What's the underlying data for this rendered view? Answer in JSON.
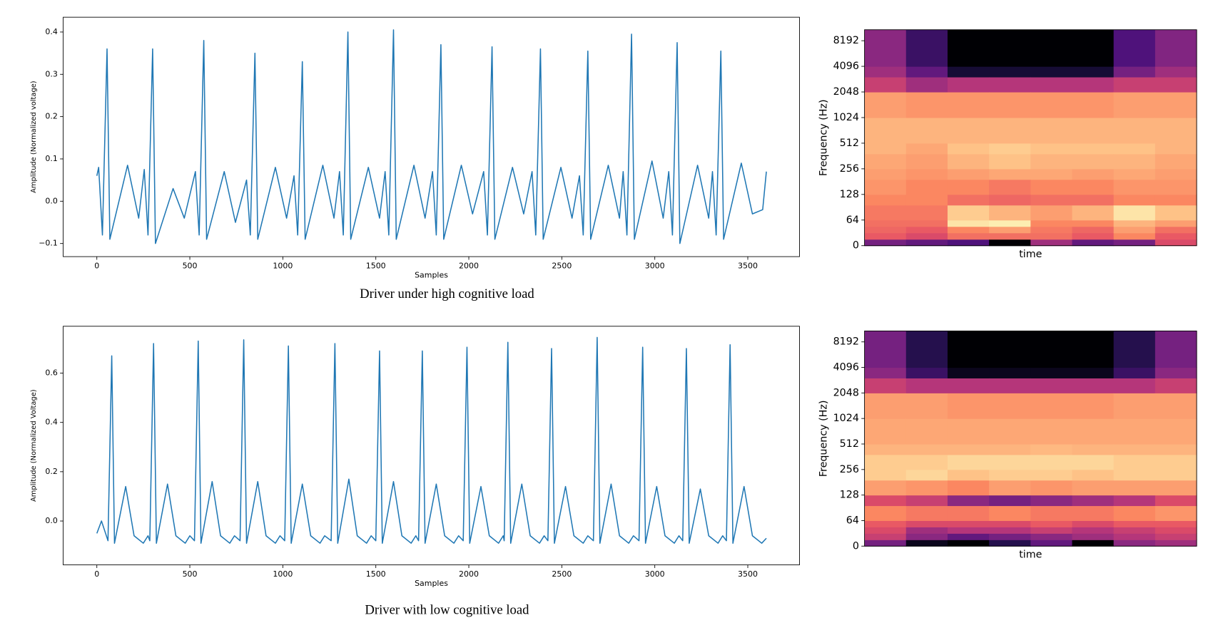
{
  "chart_data": [
    {
      "type": "line",
      "caption": "Driver under high cognitive load",
      "xlabel": "Samples",
      "ylabel": "Amplitude (Normalized voltage)",
      "color": "#1f77b4",
      "xlim": [
        -181,
        3778
      ],
      "ylim": [
        -0.131,
        0.435
      ],
      "xticks": [
        0,
        500,
        1000,
        1500,
        2000,
        2500,
        3000,
        3500
      ],
      "yticks": [
        {
          "value": -0.1,
          "label": "−0.1"
        },
        {
          "value": 0,
          "label": "0.0"
        },
        0.1,
        0.2,
        0.3,
        0.4
      ],
      "x": [
        0,
        10,
        30,
        55,
        70,
        165,
        225,
        255,
        275,
        300,
        315,
        410,
        470,
        530,
        550,
        575,
        590,
        685,
        745,
        805,
        825,
        850,
        865,
        960,
        1020,
        1060,
        1080,
        1105,
        1120,
        1215,
        1275,
        1305,
        1325,
        1350,
        1365,
        1460,
        1520,
        1550,
        1570,
        1595,
        1610,
        1705,
        1765,
        1805,
        1825,
        1850,
        1865,
        1960,
        2020,
        2080,
        2100,
        2125,
        2140,
        2235,
        2295,
        2340,
        2360,
        2385,
        2400,
        2495,
        2555,
        2595,
        2615,
        2640,
        2655,
        2750,
        2810,
        2830,
        2850,
        2875,
        2890,
        2985,
        3045,
        3075,
        3095,
        3120,
        3135,
        3230,
        3290,
        3310,
        3330,
        3355,
        3370,
        3465,
        3525,
        3580,
        3600
      ],
      "values": [
        0.06,
        0.08,
        -0.08,
        0.36,
        -0.09,
        0.085,
        -0.04,
        0.075,
        -0.08,
        0.36,
        -0.1,
        0.03,
        -0.04,
        0.07,
        -0.08,
        0.38,
        -0.09,
        0.07,
        -0.05,
        0.05,
        -0.08,
        0.35,
        -0.09,
        0.08,
        -0.04,
        0.06,
        -0.08,
        0.33,
        -0.09,
        0.085,
        -0.04,
        0.07,
        -0.08,
        0.4,
        -0.09,
        0.08,
        -0.04,
        0.07,
        -0.08,
        0.405,
        -0.09,
        0.085,
        -0.04,
        0.07,
        -0.08,
        0.37,
        -0.09,
        0.085,
        -0.03,
        0.07,
        -0.08,
        0.365,
        -0.09,
        0.08,
        -0.03,
        0.07,
        -0.08,
        0.36,
        -0.09,
        0.08,
        -0.04,
        0.06,
        -0.08,
        0.355,
        -0.09,
        0.085,
        -0.04,
        0.07,
        -0.08,
        0.395,
        -0.09,
        0.095,
        -0.04,
        0.07,
        -0.08,
        0.375,
        -0.1,
        0.085,
        -0.04,
        0.07,
        -0.08,
        0.355,
        -0.09,
        0.09,
        -0.03,
        -0.02,
        0.07
      ]
    },
    {
      "type": "spectrogram",
      "xlabel": "time",
      "ylabel": "Frequency (Hz)",
      "colormap": "magma",
      "yscale": "symlog",
      "linthresh": 64,
      "ylim": [
        0,
        11025
      ],
      "yticks": [
        0,
        64,
        128,
        256,
        512,
        1024,
        2048,
        4096,
        8192
      ],
      "bins": [
        0,
        16,
        32,
        48,
        64,
        96,
        128,
        192,
        256,
        384,
        512,
        1024,
        2048,
        3072,
        4096,
        11025
      ],
      "values": [
        [
          0.35,
          0.65,
          0.68,
          0.7,
          0.72,
          0.75,
          0.78,
          0.8,
          0.82,
          0.85,
          0.85,
          0.8,
          0.55,
          0.45,
          0.4
        ],
        [
          0.3,
          0.6,
          0.65,
          0.7,
          0.72,
          0.75,
          0.75,
          0.78,
          0.8,
          0.82,
          0.85,
          0.78,
          0.45,
          0.3,
          0.2
        ],
        [
          0.25,
          0.7,
          0.75,
          0.95,
          0.9,
          0.7,
          0.75,
          0.8,
          0.85,
          0.88,
          0.85,
          0.78,
          0.5,
          0.1,
          0.0
        ],
        [
          0.0,
          0.7,
          0.8,
          0.97,
          0.85,
          0.68,
          0.72,
          0.82,
          0.88,
          0.9,
          0.85,
          0.78,
          0.5,
          0.1,
          0.0
        ],
        [
          0.45,
          0.7,
          0.72,
          0.75,
          0.8,
          0.7,
          0.75,
          0.82,
          0.85,
          0.88,
          0.85,
          0.78,
          0.5,
          0.1,
          0.0
        ],
        [
          0.3,
          0.65,
          0.68,
          0.75,
          0.85,
          0.7,
          0.75,
          0.8,
          0.85,
          0.88,
          0.85,
          0.78,
          0.5,
          0.1,
          0.0
        ],
        [
          0.35,
          0.75,
          0.8,
          0.85,
          0.95,
          0.75,
          0.78,
          0.82,
          0.85,
          0.88,
          0.85,
          0.8,
          0.55,
          0.35,
          0.25
        ],
        [
          0.6,
          0.65,
          0.7,
          0.8,
          0.88,
          0.75,
          0.78,
          0.8,
          0.82,
          0.85,
          0.85,
          0.8,
          0.55,
          0.45,
          0.38
        ]
      ]
    },
    {
      "type": "line",
      "caption": "Driver with low cognitive load",
      "xlabel": "Samples",
      "ylabel": "Amplitude (Normalized Voltage)",
      "color": "#1f77b4",
      "xlim": [
        -181,
        3778
      ],
      "ylim": [
        -0.178,
        0.79
      ],
      "xticks": [
        0,
        500,
        1000,
        1500,
        2000,
        2500,
        3000,
        3500
      ],
      "yticks": [
        {
          "value": 0,
          "label": "0.0"
        },
        0.2,
        0.4,
        0.6
      ],
      "x": [
        0,
        25,
        60,
        80,
        95,
        155,
        200,
        250,
        275,
        285,
        305,
        320,
        380,
        425,
        475,
        500,
        525,
        545,
        560,
        620,
        665,
        715,
        740,
        770,
        790,
        805,
        865,
        910,
        960,
        985,
        1010,
        1030,
        1045,
        1105,
        1150,
        1200,
        1225,
        1260,
        1280,
        1295,
        1355,
        1400,
        1450,
        1475,
        1500,
        1520,
        1535,
        1595,
        1640,
        1690,
        1715,
        1730,
        1750,
        1765,
        1825,
        1870,
        1920,
        1945,
        1970,
        1990,
        2005,
        2065,
        2110,
        2160,
        2185,
        2190,
        2210,
        2225,
        2285,
        2330,
        2380,
        2405,
        2425,
        2445,
        2460,
        2520,
        2565,
        2615,
        2640,
        2670,
        2690,
        2705,
        2765,
        2810,
        2860,
        2885,
        2915,
        2935,
        2950,
        3010,
        3055,
        3105,
        3130,
        3150,
        3170,
        3185,
        3245,
        3290,
        3340,
        3365,
        3385,
        3405,
        3420,
        3480,
        3525,
        3575,
        3600
      ],
      "values": [
        -0.05,
        0.0,
        -0.08,
        0.67,
        -0.09,
        0.14,
        -0.06,
        -0.09,
        -0.06,
        -0.08,
        0.72,
        -0.09,
        0.15,
        -0.06,
        -0.09,
        -0.06,
        -0.08,
        0.73,
        -0.09,
        0.16,
        -0.06,
        -0.09,
        -0.06,
        -0.08,
        0.735,
        -0.09,
        0.16,
        -0.06,
        -0.09,
        -0.06,
        -0.08,
        0.71,
        -0.09,
        0.15,
        -0.06,
        -0.09,
        -0.06,
        -0.08,
        0.72,
        -0.09,
        0.17,
        -0.06,
        -0.09,
        -0.06,
        -0.08,
        0.69,
        -0.09,
        0.16,
        -0.06,
        -0.09,
        -0.06,
        -0.08,
        0.69,
        -0.09,
        0.15,
        -0.06,
        -0.09,
        -0.06,
        -0.08,
        0.705,
        -0.09,
        0.14,
        -0.06,
        -0.09,
        -0.06,
        -0.08,
        0.725,
        -0.09,
        0.15,
        -0.06,
        -0.09,
        -0.06,
        -0.08,
        0.7,
        -0.09,
        0.14,
        -0.06,
        -0.09,
        -0.06,
        -0.08,
        0.745,
        -0.09,
        0.15,
        -0.06,
        -0.09,
        -0.06,
        -0.08,
        0.705,
        -0.09,
        0.14,
        -0.06,
        -0.09,
        -0.06,
        -0.08,
        0.7,
        -0.09,
        0.13,
        -0.06,
        -0.09,
        -0.06,
        -0.08,
        0.715,
        -0.09,
        0.14,
        -0.06,
        -0.09,
        -0.07
      ]
    },
    {
      "type": "spectrogram",
      "xlabel": "time",
      "ylabel": "Frequency (Hz)",
      "colormap": "magma",
      "yscale": "symlog",
      "linthresh": 64,
      "ylim": [
        0,
        11025
      ],
      "yticks": [
        0,
        64,
        128,
        256,
        512,
        1024,
        2048,
        4096,
        8192
      ],
      "bins": [
        0,
        16,
        32,
        48,
        64,
        96,
        128,
        192,
        256,
        384,
        512,
        1024,
        2048,
        3072,
        4096,
        11025
      ],
      "values": [
        [
          0.35,
          0.55,
          0.6,
          0.65,
          0.75,
          0.6,
          0.8,
          0.9,
          0.9,
          0.85,
          0.82,
          0.8,
          0.55,
          0.4,
          0.35
        ],
        [
          0.05,
          0.4,
          0.45,
          0.6,
          0.72,
          0.55,
          0.78,
          0.92,
          0.9,
          0.85,
          0.82,
          0.8,
          0.5,
          0.2,
          0.15
        ],
        [
          0.0,
          0.3,
          0.5,
          0.6,
          0.72,
          0.4,
          0.75,
          0.88,
          0.92,
          0.85,
          0.82,
          0.78,
          0.5,
          0.05,
          0.0
        ],
        [
          0.15,
          0.35,
          0.5,
          0.6,
          0.75,
          0.35,
          0.8,
          0.9,
          0.92,
          0.85,
          0.82,
          0.78,
          0.5,
          0.05,
          0.0
        ],
        [
          0.3,
          0.4,
          0.55,
          0.65,
          0.72,
          0.4,
          0.78,
          0.9,
          0.92,
          0.86,
          0.82,
          0.78,
          0.5,
          0.05,
          0.0
        ],
        [
          0.0,
          0.45,
          0.5,
          0.6,
          0.72,
          0.45,
          0.8,
          0.88,
          0.92,
          0.85,
          0.82,
          0.78,
          0.5,
          0.05,
          0.0
        ],
        [
          0.4,
          0.5,
          0.55,
          0.65,
          0.75,
          0.5,
          0.8,
          0.9,
          0.9,
          0.85,
          0.82,
          0.8,
          0.5,
          0.2,
          0.15
        ],
        [
          0.45,
          0.55,
          0.6,
          0.65,
          0.78,
          0.6,
          0.8,
          0.9,
          0.9,
          0.85,
          0.82,
          0.8,
          0.55,
          0.4,
          0.35
        ]
      ]
    }
  ]
}
